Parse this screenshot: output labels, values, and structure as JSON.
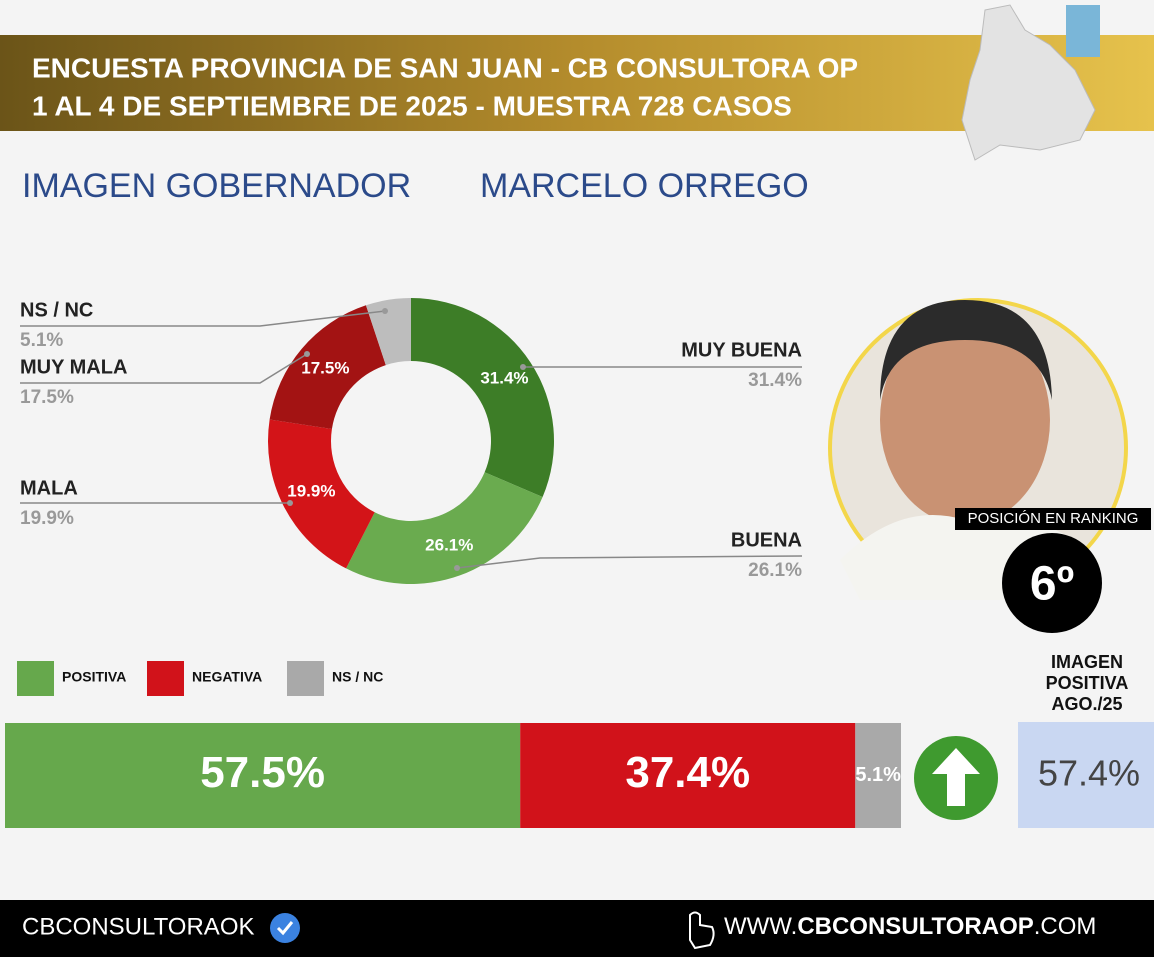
{
  "header": {
    "line1": "ENCUESTA PROVINCIA DE SAN JUAN - CB CONSULTORA OP",
    "line2": "1 AL 4 DE SEPTIEMBRE DE 2025 - MUESTRA 728 CASOS"
  },
  "subtitle": {
    "topic": "IMAGEN GOBERNADOR",
    "name": "MARCELO ORREGO"
  },
  "chart_data": [
    {
      "type": "pie",
      "categories": [
        "MUY BUENA",
        "BUENA",
        "MALA",
        "MUY MALA",
        "NS / NC"
      ],
      "values": [
        31.4,
        26.1,
        19.9,
        17.5,
        5.1
      ],
      "value_labels": [
        "31.4%",
        "26.1%",
        "19.9%",
        "17.5%",
        "5.1%"
      ],
      "colors": [
        "#3d7d27",
        "#6aab4f",
        "#d31418",
        "#a31313",
        "#bdbdbd"
      ]
    },
    {
      "type": "stacked-bar",
      "categories": [
        null
      ],
      "xlim": [
        0,
        100
      ],
      "series": [
        {
          "name": "POSITIVA",
          "color": "#66a84c",
          "values": [
            57.5
          ],
          "value_labels": [
            "57.5%"
          ]
        },
        {
          "name": "NEGATIVA",
          "color": "#d1121a",
          "values": [
            37.4
          ],
          "value_labels": [
            "37.4%"
          ]
        },
        {
          "name": "NS / NC",
          "color": "#a9a9a9",
          "values": [
            5.1
          ],
          "value_labels": [
            "5.1%"
          ]
        }
      ]
    }
  ],
  "ranking": {
    "label": "POSICIÓN EN RANKING",
    "position": "6º"
  },
  "comparison": {
    "label": "IMAGEN POSITIVA AGO./25",
    "value_label": "57.4%"
  },
  "footer": {
    "handle": "CBCONSULTORAOK",
    "web_prefix": "WWW.",
    "web_main": "CBCONSULTORAOP",
    "web_suffix": ".COM"
  }
}
